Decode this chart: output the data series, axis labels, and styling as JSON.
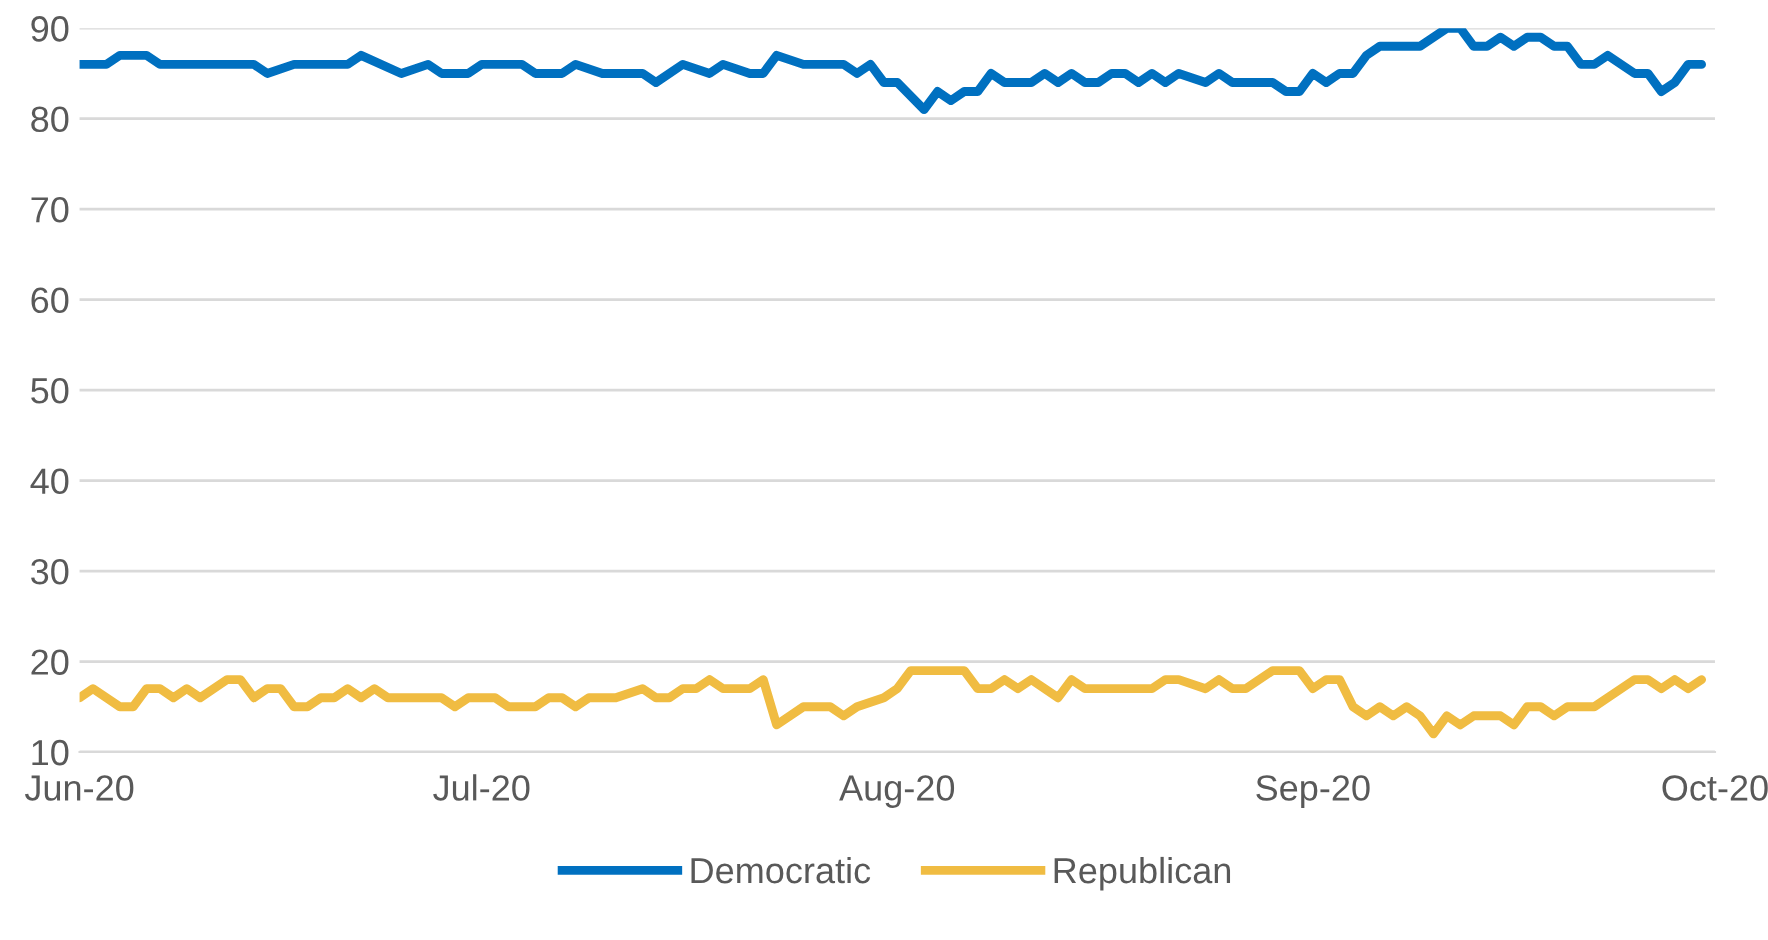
{
  "chart_data": {
    "type": "line",
    "xlim": [
      "2020-06-01",
      "2020-10-01"
    ],
    "xticks": [
      {
        "value": "2020-06-01",
        "label": "Jun-20"
      },
      {
        "value": "2020-07-01",
        "label": "Jul-20"
      },
      {
        "value": "2020-08-01",
        "label": "Aug-20"
      },
      {
        "value": "2020-09-01",
        "label": "Sep-20"
      },
      {
        "value": "2020-10-01",
        "label": "Oct-20"
      }
    ],
    "ylim": [
      10,
      90
    ],
    "yticks": [
      10,
      20,
      30,
      40,
      50,
      60,
      70,
      80,
      90
    ],
    "grid": "y",
    "legend": "bottom",
    "marker": "none",
    "line_style": "solid",
    "series": [
      {
        "name": "Democratic",
        "color": "#0070c0",
        "x": [
          "2020-06-01",
          "2020-06-03",
          "2020-06-04",
          "2020-06-06",
          "2020-06-07",
          "2020-06-14",
          "2020-06-15",
          "2020-06-17",
          "2020-06-21",
          "2020-06-22",
          "2020-06-25",
          "2020-06-27",
          "2020-06-28",
          "2020-06-30",
          "2020-07-01",
          "2020-07-04",
          "2020-07-05",
          "2020-07-07",
          "2020-07-08",
          "2020-07-10",
          "2020-07-13",
          "2020-07-14",
          "2020-07-16",
          "2020-07-18",
          "2020-07-19",
          "2020-07-21",
          "2020-07-22",
          "2020-07-23",
          "2020-07-25",
          "2020-07-28",
          "2020-07-29",
          "2020-07-30",
          "2020-07-31",
          "2020-08-01",
          "2020-08-03",
          "2020-08-04",
          "2020-08-05",
          "2020-08-06",
          "2020-08-07",
          "2020-08-08",
          "2020-08-09",
          "2020-08-11",
          "2020-08-12",
          "2020-08-13",
          "2020-08-14",
          "2020-08-15",
          "2020-08-16",
          "2020-08-17",
          "2020-08-18",
          "2020-08-19",
          "2020-08-20",
          "2020-08-21",
          "2020-08-22",
          "2020-08-24",
          "2020-08-25",
          "2020-08-26",
          "2020-08-29",
          "2020-08-30",
          "2020-08-31",
          "2020-09-01",
          "2020-09-02",
          "2020-09-03",
          "2020-09-04",
          "2020-09-05",
          "2020-09-06",
          "2020-09-09",
          "2020-09-11",
          "2020-09-12",
          "2020-09-13",
          "2020-09-14",
          "2020-09-15",
          "2020-09-16",
          "2020-09-17",
          "2020-09-18",
          "2020-09-19",
          "2020-09-20",
          "2020-09-21",
          "2020-09-22",
          "2020-09-23",
          "2020-09-25",
          "2020-09-26",
          "2020-09-27",
          "2020-09-28",
          "2020-09-29",
          "2020-09-30"
        ],
        "values": [
          86,
          86,
          87,
          87,
          86,
          86,
          85,
          86,
          86,
          87,
          85,
          86,
          85,
          85,
          86,
          86,
          85,
          85,
          86,
          85,
          85,
          84,
          86,
          85,
          86,
          85,
          85,
          87,
          86,
          86,
          85,
          86,
          84,
          84,
          81,
          83,
          82,
          83,
          83,
          85,
          84,
          84,
          85,
          84,
          85,
          84,
          84,
          85,
          85,
          84,
          85,
          84,
          85,
          84,
          85,
          84,
          84,
          83,
          83,
          85,
          84,
          85,
          85,
          87,
          88,
          88,
          90,
          90,
          88,
          88,
          89,
          88,
          89,
          89,
          88,
          88,
          86,
          86,
          87,
          85,
          85,
          83,
          84,
          86,
          86
        ]
      },
      {
        "name": "Republican",
        "color": "#f0bc42",
        "x": [
          "2020-06-01",
          "2020-06-02",
          "2020-06-04",
          "2020-06-05",
          "2020-06-06",
          "2020-06-07",
          "2020-06-08",
          "2020-06-09",
          "2020-06-10",
          "2020-06-12",
          "2020-06-13",
          "2020-06-14",
          "2020-06-15",
          "2020-06-16",
          "2020-06-17",
          "2020-06-18",
          "2020-06-19",
          "2020-06-20",
          "2020-06-21",
          "2020-06-22",
          "2020-06-23",
          "2020-06-24",
          "2020-06-28",
          "2020-06-29",
          "2020-06-30",
          "2020-07-02",
          "2020-07-03",
          "2020-07-05",
          "2020-07-06",
          "2020-07-07",
          "2020-07-08",
          "2020-07-09",
          "2020-07-11",
          "2020-07-13",
          "2020-07-14",
          "2020-07-15",
          "2020-07-16",
          "2020-07-17",
          "2020-07-18",
          "2020-07-19",
          "2020-07-21",
          "2020-07-22",
          "2020-07-23",
          "2020-07-25",
          "2020-07-27",
          "2020-07-28",
          "2020-07-29",
          "2020-07-31",
          "2020-08-01",
          "2020-08-02",
          "2020-08-06",
          "2020-08-07",
          "2020-08-08",
          "2020-08-09",
          "2020-08-10",
          "2020-08-11",
          "2020-08-13",
          "2020-08-14",
          "2020-08-15",
          "2020-08-20",
          "2020-08-21",
          "2020-08-22",
          "2020-08-24",
          "2020-08-25",
          "2020-08-26",
          "2020-08-27",
          "2020-08-29",
          "2020-08-31",
          "2020-09-01",
          "2020-09-02",
          "2020-09-03",
          "2020-09-04",
          "2020-09-05",
          "2020-09-06",
          "2020-09-07",
          "2020-09-08",
          "2020-09-09",
          "2020-09-10",
          "2020-09-11",
          "2020-09-12",
          "2020-09-13",
          "2020-09-15",
          "2020-09-16",
          "2020-09-17",
          "2020-09-18",
          "2020-09-19",
          "2020-09-20",
          "2020-09-22",
          "2020-09-25",
          "2020-09-26",
          "2020-09-27",
          "2020-09-28",
          "2020-09-29",
          "2020-09-30"
        ],
        "values": [
          16,
          17,
          15,
          15,
          17,
          17,
          16,
          17,
          16,
          18,
          18,
          16,
          17,
          17,
          15,
          15,
          16,
          16,
          17,
          16,
          17,
          16,
          16,
          15,
          16,
          16,
          15,
          15,
          16,
          16,
          15,
          16,
          16,
          17,
          16,
          16,
          17,
          17,
          18,
          17,
          17,
          18,
          13,
          15,
          15,
          14,
          15,
          16,
          17,
          19,
          19,
          17,
          17,
          18,
          17,
          18,
          16,
          18,
          17,
          17,
          18,
          18,
          17,
          18,
          17,
          17,
          19,
          19,
          17,
          18,
          18,
          15,
          14,
          15,
          14,
          15,
          14,
          12,
          14,
          13,
          14,
          14,
          13,
          15,
          15,
          14,
          15,
          15,
          18,
          18,
          17,
          18,
          17,
          18
        ]
      }
    ]
  }
}
